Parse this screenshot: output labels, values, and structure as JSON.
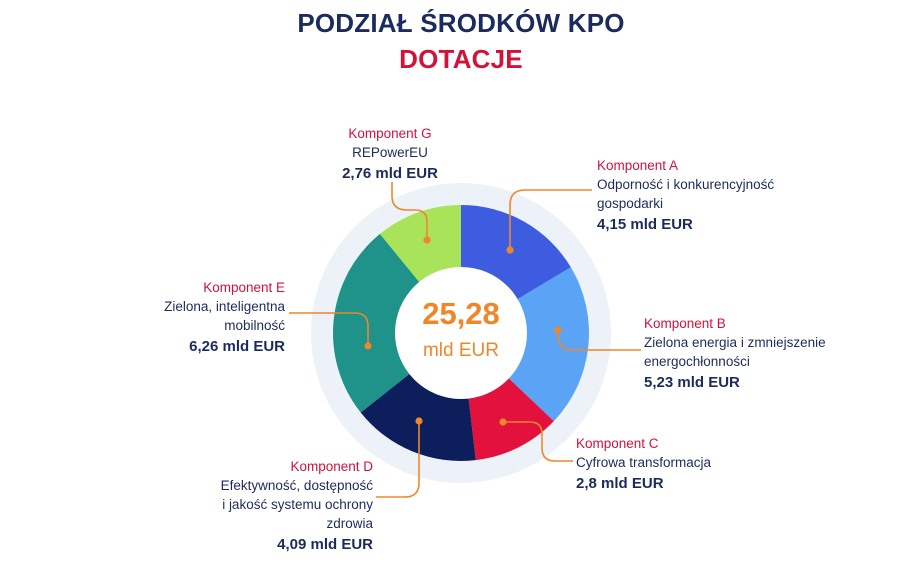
{
  "header": {
    "title": "PODZIAŁ ŚRODKÓW KPO",
    "subtitle": "DOTACJE"
  },
  "center_total": {
    "value": "25,28",
    "unit": "mld EUR"
  },
  "labels": {
    "A": {
      "name": "Komponent A",
      "desc1": "Odporność i konkurencyjność",
      "desc2": "gospodarki",
      "value": "4,15 mld EUR"
    },
    "B": {
      "name": "Komponent B",
      "desc1": "Zielona energia i zmniejszenie",
      "desc2": "energochłonności",
      "value": "5,23 mld EUR"
    },
    "C": {
      "name": "Komponent C",
      "desc1": "Cyfrowa transformacja",
      "value": "2,8 mld EUR"
    },
    "D": {
      "name": "Komponent D",
      "desc1": "Efektywność, dostępność",
      "desc2": "i jakość systemu ochrony",
      "desc3": "zdrowia",
      "value": "4,09 mld EUR"
    },
    "E": {
      "name": "Komponent E",
      "desc1": "Zielona, inteligentna",
      "desc2": "mobilność",
      "value": "6,26 mld EUR"
    },
    "G": {
      "name": "Komponent G",
      "desc1": "REPowerEU",
      "value": "2,76 mld EUR"
    }
  },
  "chart_data": {
    "type": "pie",
    "variant": "donut",
    "title": "PODZIAŁ ŚRODKÓW KPO",
    "subtitle": "DOTACJE",
    "unit": "mld EUR",
    "total": 25.28,
    "slices": [
      {
        "name": "Komponent A",
        "label": "Odporność i konkurencyjność gospodarki",
        "value": 4.15,
        "color": "#3d5ce0"
      },
      {
        "name": "Komponent B",
        "label": "Zielona energia i zmniejszenie energochłonności",
        "value": 5.23,
        "color": "#5aa3f5"
      },
      {
        "name": "Komponent C",
        "label": "Cyfrowa transformacja",
        "value": 2.8,
        "color": "#e3123d"
      },
      {
        "name": "Komponent D",
        "label": "Efektywność, dostępność i jakość systemu ochrony zdrowia",
        "value": 4.09,
        "color": "#0c1f5c"
      },
      {
        "name": "Komponent E",
        "label": "Zielona, inteligentna mobilność",
        "value": 6.26,
        "color": "#1f928a"
      },
      {
        "name": "Komponent G",
        "label": "REPowerEU",
        "value": 2.76,
        "color": "#a8e35a"
      }
    ],
    "start_angle": "top, clockwise",
    "colors": {
      "title": "#1c2b5e",
      "accent_red": "#d3123a",
      "leader": "#f0862a",
      "halo": "#edf1f8"
    }
  }
}
